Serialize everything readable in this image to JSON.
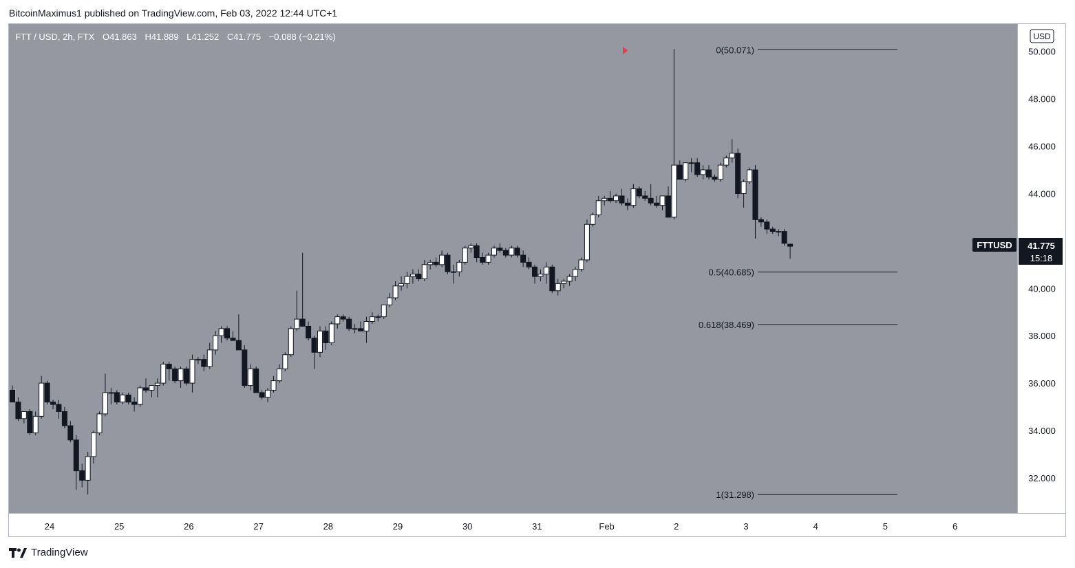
{
  "header": {
    "published_line": "BitcoinMaximus1 published on TradingView.com, Feb 03, 2022 12:44 UTC+1"
  },
  "legend": {
    "symbol": "FTT / USD, 2h, FTX",
    "o_label": "O",
    "o_value": "41.863",
    "h_label": "H",
    "h_value": "41.889",
    "l_label": "L",
    "l_value": "41.252",
    "c_label": "C",
    "c_value": "41.775",
    "change": "−0.088 (−0.21%)"
  },
  "currency_button": "USD",
  "price_badge": {
    "symbol": "FTTUSD",
    "price": "41.775",
    "countdown": "15:18"
  },
  "footer": {
    "brand": "TradingView"
  },
  "colors": {
    "plot_bg": "#9598a1",
    "up_candle": "#ffffff",
    "down_candle": "#131722",
    "wick": "#131722",
    "marker": "#f23645"
  },
  "chart_data": {
    "type": "candlestick",
    "symbol": "FTTUSD",
    "interval": "2h",
    "ylim": [
      30.75,
      50.95
    ],
    "y_ticks": [
      "32.000",
      "34.000",
      "36.000",
      "38.000",
      "40.000",
      "42.000",
      "44.000",
      "46.000",
      "48.000",
      "50.000"
    ],
    "x_ticks": [
      "24",
      "25",
      "26",
      "27",
      "28",
      "29",
      "30",
      "31",
      "Feb",
      "2",
      "3",
      "4",
      "5",
      "6"
    ],
    "candles_per_day": 12,
    "fib_levels": [
      {
        "ratio": "0",
        "price": 50.071,
        "label": "0(50.071)"
      },
      {
        "ratio": "0.5",
        "price": 40.685,
        "label": "0.5(40.685)"
      },
      {
        "ratio": "0.618",
        "price": 38.469,
        "label": "0.618(38.469)"
      },
      {
        "ratio": "1",
        "price": 31.298,
        "label": "1(31.298)"
      }
    ],
    "candles": [
      [
        35.7,
        35.9,
        35.2,
        35.2
      ],
      [
        35.2,
        35.4,
        34.4,
        34.5
      ],
      [
        34.5,
        34.8,
        34.3,
        34.8
      ],
      [
        34.8,
        34.9,
        33.8,
        33.9
      ],
      [
        33.9,
        34.8,
        33.8,
        34.6
      ],
      [
        34.6,
        36.3,
        34.5,
        36.0
      ],
      [
        36.0,
        36.1,
        35.1,
        35.2
      ],
      [
        35.2,
        35.3,
        34.9,
        35.1
      ],
      [
        35.1,
        35.3,
        34.5,
        34.8
      ],
      [
        34.8,
        35.0,
        34.1,
        34.2
      ],
      [
        34.2,
        34.4,
        33.5,
        33.6
      ],
      [
        33.6,
        33.8,
        31.5,
        32.3
      ],
      [
        32.3,
        32.6,
        31.6,
        31.9
      ],
      [
        31.9,
        33.1,
        31.3,
        32.9
      ],
      [
        32.9,
        34.0,
        32.6,
        33.9
      ],
      [
        33.9,
        34.8,
        33.8,
        34.7
      ],
      [
        34.7,
        36.4,
        34.6,
        35.6
      ],
      [
        35.6,
        35.8,
        35.1,
        35.6
      ],
      [
        35.6,
        35.7,
        35.1,
        35.2
      ],
      [
        35.2,
        35.6,
        35.1,
        35.5
      ],
      [
        35.5,
        35.6,
        35.1,
        35.2
      ],
      [
        35.2,
        35.4,
        34.8,
        35.1
      ],
      [
        35.1,
        35.9,
        35.0,
        35.8
      ],
      [
        35.8,
        36.2,
        35.6,
        35.7
      ],
      [
        35.7,
        35.9,
        35.4,
        35.9
      ],
      [
        35.9,
        36.2,
        35.4,
        36.0
      ],
      [
        36.0,
        36.9,
        35.9,
        36.8
      ],
      [
        36.8,
        36.9,
        36.1,
        36.6
      ],
      [
        36.6,
        36.7,
        36.0,
        36.1
      ],
      [
        36.1,
        36.7,
        35.8,
        36.6
      ],
      [
        36.6,
        36.7,
        35.9,
        36.0
      ],
      [
        36.0,
        37.2,
        35.6,
        37.0
      ],
      [
        37.0,
        37.1,
        36.8,
        37.0
      ],
      [
        37.0,
        37.2,
        36.5,
        36.7
      ],
      [
        36.7,
        37.7,
        36.6,
        37.4
      ],
      [
        37.4,
        38.2,
        37.2,
        38.0
      ],
      [
        38.0,
        38.4,
        37.7,
        38.3
      ],
      [
        38.3,
        38.4,
        37.8,
        37.9
      ],
      [
        37.9,
        38.2,
        37.8,
        37.8
      ],
      [
        37.8,
        38.9,
        37.4,
        37.4
      ],
      [
        37.4,
        37.6,
        35.8,
        35.9
      ],
      [
        35.9,
        36.8,
        35.7,
        36.6
      ],
      [
        36.6,
        36.7,
        35.6,
        35.6
      ],
      [
        35.6,
        35.7,
        35.3,
        35.4
      ],
      [
        35.4,
        35.8,
        35.2,
        35.7
      ],
      [
        35.7,
        36.3,
        35.6,
        36.1
      ],
      [
        36.1,
        36.8,
        36.0,
        36.6
      ],
      [
        36.6,
        37.3,
        36.5,
        37.2
      ],
      [
        37.2,
        38.4,
        37.1,
        38.3
      ],
      [
        38.3,
        39.9,
        38.2,
        38.7
      ],
      [
        38.7,
        41.5,
        38.6,
        38.4
      ],
      [
        38.4,
        38.6,
        37.8,
        37.9
      ],
      [
        37.9,
        38.0,
        36.6,
        37.3
      ],
      [
        37.3,
        38.4,
        37.1,
        38.2
      ],
      [
        38.2,
        38.4,
        37.4,
        37.7
      ],
      [
        37.7,
        38.6,
        37.6,
        38.5
      ],
      [
        38.5,
        38.9,
        38.3,
        38.8
      ],
      [
        38.8,
        38.9,
        38.6,
        38.7
      ],
      [
        38.7,
        38.8,
        38.2,
        38.3
      ],
      [
        38.3,
        38.5,
        38.1,
        38.3
      ],
      [
        38.3,
        38.6,
        38.2,
        38.2
      ],
      [
        38.2,
        38.8,
        37.7,
        38.6
      ],
      [
        38.6,
        39.0,
        38.5,
        38.8
      ],
      [
        38.8,
        38.9,
        38.6,
        38.8
      ],
      [
        38.8,
        39.3,
        38.7,
        39.3
      ],
      [
        39.3,
        39.8,
        39.2,
        39.6
      ],
      [
        39.6,
        40.3,
        39.5,
        40.1
      ],
      [
        40.1,
        40.5,
        39.9,
        40.2
      ],
      [
        40.2,
        40.7,
        40.0,
        40.5
      ],
      [
        40.5,
        40.8,
        40.2,
        40.6
      ],
      [
        40.6,
        40.8,
        40.3,
        40.4
      ],
      [
        40.4,
        41.2,
        40.3,
        41.0
      ],
      [
        41.0,
        41.2,
        40.8,
        41.1
      ],
      [
        41.1,
        41.3,
        40.9,
        41.0
      ],
      [
        41.0,
        41.6,
        40.9,
        41.4
      ],
      [
        41.4,
        41.5,
        40.6,
        40.7
      ],
      [
        40.7,
        41.0,
        40.2,
        40.7
      ],
      [
        40.7,
        41.2,
        40.5,
        41.1
      ],
      [
        41.1,
        41.8,
        41.0,
        41.7
      ],
      [
        41.7,
        41.9,
        41.5,
        41.8
      ],
      [
        41.8,
        41.9,
        41.1,
        41.3
      ],
      [
        41.3,
        41.5,
        41.0,
        41.1
      ],
      [
        41.1,
        41.5,
        41.0,
        41.4
      ],
      [
        41.4,
        41.8,
        41.3,
        41.7
      ],
      [
        41.7,
        41.9,
        41.5,
        41.6
      ],
      [
        41.6,
        41.7,
        41.3,
        41.4
      ],
      [
        41.4,
        41.8,
        41.3,
        41.7
      ],
      [
        41.7,
        41.8,
        41.3,
        41.4
      ],
      [
        41.4,
        41.6,
        40.9,
        41.1
      ],
      [
        41.1,
        41.3,
        40.8,
        40.9
      ],
      [
        40.9,
        41.0,
        40.2,
        40.5
      ],
      [
        40.5,
        40.8,
        40.3,
        40.6
      ],
      [
        40.6,
        41.1,
        40.2,
        40.9
      ],
      [
        40.9,
        41.0,
        39.8,
        39.9
      ],
      [
        39.9,
        40.4,
        39.7,
        40.2
      ],
      [
        40.2,
        40.4,
        40.0,
        40.3
      ],
      [
        40.3,
        40.6,
        40.1,
        40.5
      ],
      [
        40.5,
        40.9,
        40.3,
        40.8
      ],
      [
        40.8,
        41.3,
        40.7,
        41.2
      ],
      [
        41.2,
        42.9,
        41.1,
        42.7
      ],
      [
        42.7,
        43.2,
        42.6,
        43.1
      ],
      [
        43.1,
        43.9,
        43.0,
        43.7
      ],
      [
        43.7,
        43.9,
        43.5,
        43.8
      ],
      [
        43.8,
        44.1,
        43.6,
        43.7
      ],
      [
        43.7,
        44.0,
        43.6,
        43.9
      ],
      [
        43.9,
        44.2,
        43.5,
        43.6
      ],
      [
        43.6,
        43.8,
        43.3,
        43.5
      ],
      [
        43.5,
        44.4,
        43.4,
        44.2
      ],
      [
        44.2,
        44.3,
        43.8,
        43.9
      ],
      [
        43.9,
        44.1,
        43.7,
        43.8
      ],
      [
        43.8,
        44.4,
        43.5,
        43.6
      ],
      [
        43.6,
        43.9,
        43.4,
        43.5
      ],
      [
        43.5,
        43.9,
        43.3,
        43.9
      ],
      [
        43.9,
        44.3,
        43.0,
        43.0
      ],
      [
        43.0,
        50.1,
        42.9,
        45.2
      ],
      [
        45.2,
        45.4,
        44.6,
        44.6
      ],
      [
        44.6,
        45.3,
        44.5,
        45.3
      ],
      [
        45.3,
        45.5,
        44.9,
        45.3
      ],
      [
        45.3,
        45.5,
        44.7,
        44.8
      ],
      [
        44.8,
        45.2,
        44.6,
        45.0
      ],
      [
        45.0,
        45.2,
        44.6,
        44.7
      ],
      [
        44.7,
        44.8,
        44.5,
        44.6
      ],
      [
        44.6,
        45.3,
        44.5,
        45.2
      ],
      [
        45.2,
        45.6,
        45.1,
        45.5
      ],
      [
        45.5,
        46.3,
        45.3,
        45.7
      ],
      [
        45.7,
        45.9,
        43.8,
        44.0
      ],
      [
        44.0,
        44.6,
        43.4,
        44.5
      ],
      [
        44.5,
        45.1,
        44.4,
        45.0
      ],
      [
        45.0,
        45.2,
        42.1,
        42.9
      ],
      [
        42.9,
        43.0,
        42.6,
        42.8
      ],
      [
        42.8,
        42.9,
        42.3,
        42.5
      ],
      [
        42.5,
        42.6,
        42.3,
        42.4
      ],
      [
        42.4,
        42.5,
        42.2,
        42.4
      ],
      [
        42.4,
        42.5,
        41.8,
        41.9
      ],
      [
        41.863,
        41.889,
        41.252,
        41.775
      ]
    ]
  }
}
